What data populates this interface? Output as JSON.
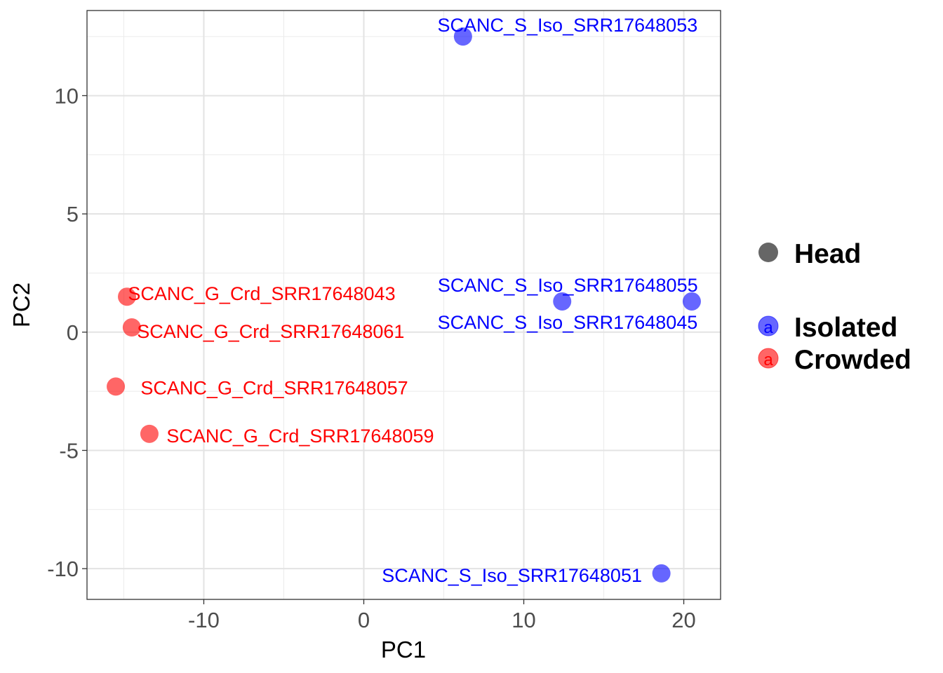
{
  "chart_data": {
    "type": "scatter",
    "title": "",
    "xlabel": "PC1",
    "ylabel": "PC2",
    "xlim": [
      -17.3,
      22.3
    ],
    "ylim": [
      -11.3,
      13.6
    ],
    "xticks": [
      -10,
      0,
      10,
      20
    ],
    "xtick_labels": [
      "-10",
      "0",
      "10",
      "20"
    ],
    "yticks": [
      -10,
      -5,
      0,
      5,
      10
    ],
    "ytick_labels": [
      "-10",
      "-5",
      "0",
      "5",
      "10"
    ],
    "grid": true,
    "legend_position": "right",
    "legend": {
      "shape_title": "Head",
      "groups": [
        {
          "name": "Isolated",
          "color": "#0000ff",
          "key_glyph": "a"
        },
        {
          "name": "Crowded",
          "color": "#ff0000",
          "key_glyph": "a"
        }
      ]
    },
    "points": [
      {
        "label": "SCANC_S_Iso_SRR17648053",
        "group": "Isolated",
        "x": 6.2,
        "y": 12.5
      },
      {
        "label": "SCANC_S_Iso_SRR17648055",
        "group": "Isolated",
        "x": 12.4,
        "y": 1.3
      },
      {
        "label": "SCANC_S_Iso_SRR17648045",
        "group": "Isolated",
        "x": 20.5,
        "y": 1.3
      },
      {
        "label": "SCANC_S_Iso_SRR17648051",
        "group": "Isolated",
        "x": 18.6,
        "y": -10.2
      },
      {
        "label": "SCANC_G_Crd_SRR17648043",
        "group": "Crowded",
        "x": -14.8,
        "y": 1.5
      },
      {
        "label": "SCANC_G_Crd_SRR17648061",
        "group": "Crowded",
        "x": -14.5,
        "y": 0.2
      },
      {
        "label": "SCANC_G_Crd_SRR17648057",
        "group": "Crowded",
        "x": -15.5,
        "y": -2.3
      },
      {
        "label": "SCANC_G_Crd_SRR17648059",
        "group": "Crowded",
        "x": -13.4,
        "y": -4.3
      }
    ]
  }
}
